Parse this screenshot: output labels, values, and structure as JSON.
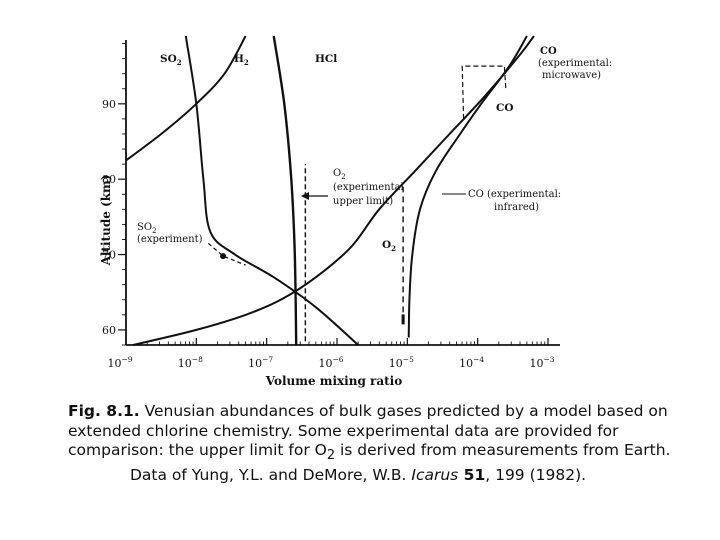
{
  "chart_data": {
    "type": "line",
    "xlabel": "Volume mixing ratio",
    "ylabel": "Altitude (km)",
    "xscale": "log",
    "xlim": [
      1e-09,
      0.001
    ],
    "ylim": [
      58,
      99
    ],
    "xticks": [
      {
        "exp": -9,
        "label": "10",
        "sup": "−9"
      },
      {
        "exp": -8,
        "label": "10",
        "sup": "−8"
      },
      {
        "exp": -7,
        "label": "10",
        "sup": "−7"
      },
      {
        "exp": -6,
        "label": "10",
        "sup": "−6"
      },
      {
        "exp": -5,
        "label": "10",
        "sup": "−5"
      },
      {
        "exp": -4,
        "label": "10",
        "sup": "−4"
      },
      {
        "exp": -3,
        "label": "10",
        "sup": "−3"
      }
    ],
    "yticks": [
      {
        "value": 60,
        "label": "60"
      },
      {
        "value": 70,
        "label": "70"
      },
      {
        "value": 80,
        "label": "80"
      },
      {
        "value": 90,
        "label": "90"
      }
    ],
    "grid": false,
    "series": [
      {
        "name": "SO2",
        "style": "solid",
        "points": [
          [
            -8.15,
            99
          ],
          [
            -8.0,
            90
          ],
          [
            -7.9,
            80
          ],
          [
            -7.8,
            73
          ],
          [
            -7.45,
            70
          ],
          [
            -6.9,
            67
          ],
          [
            -6.3,
            63
          ],
          [
            -5.7,
            58
          ]
        ]
      },
      {
        "name": "H2",
        "style": "solid",
        "points": [
          [
            -9.0,
            82.5
          ],
          [
            -8.5,
            86
          ],
          [
            -8.0,
            90
          ],
          [
            -7.6,
            94
          ],
          [
            -7.3,
            99
          ]
        ]
      },
      {
        "name": "HCl",
        "style": "solid",
        "points": [
          [
            -6.9,
            99
          ],
          [
            -6.75,
            90
          ],
          [
            -6.65,
            80
          ],
          [
            -6.6,
            70
          ],
          [
            -6.58,
            58
          ]
        ]
      },
      {
        "name": "O2",
        "style": "solid",
        "points": [
          [
            -8.9,
            58
          ],
          [
            -8.0,
            60
          ],
          [
            -7.3,
            62
          ],
          [
            -6.8,
            64
          ],
          [
            -6.3,
            67
          ],
          [
            -5.8,
            71
          ],
          [
            -5.4,
            76
          ],
          [
            -4.9,
            81
          ],
          [
            -4.4,
            86
          ],
          [
            -3.9,
            91
          ],
          [
            -3.4,
            96.5
          ],
          [
            -3.2,
            99
          ]
        ]
      },
      {
        "name": "CO",
        "style": "solid",
        "points": [
          [
            -4.98,
            59
          ],
          [
            -4.97,
            64
          ],
          [
            -4.93,
            70
          ],
          [
            -4.82,
            76
          ],
          [
            -4.6,
            81
          ],
          [
            -4.25,
            86
          ],
          [
            -3.95,
            90
          ],
          [
            -3.55,
            95
          ],
          [
            -3.3,
            99
          ]
        ]
      }
    ],
    "experimental": {
      "so2_experiment": {
        "points": [
          [
            -7.83,
            71.5
          ],
          [
            -7.62,
            69.8
          ],
          [
            -7.3,
            68.6
          ]
        ],
        "marker": [
          -7.62,
          69.8
        ]
      },
      "o2_upper_limit": {
        "x": -6.45,
        "y_range": [
          58.5,
          82
        ]
      },
      "co_infrared": {
        "x": -5.06,
        "y_range": [
          61,
          79
        ],
        "marker_y": 61
      },
      "co_microwave": {
        "points": [
          [
            -4.2,
            88
          ],
          [
            -4.22,
            95
          ],
          [
            -3.62,
            95
          ],
          [
            -3.6,
            92
          ]
        ]
      }
    }
  },
  "labels": {
    "so2": {
      "base": "SO",
      "sub": "2"
    },
    "h2": {
      "base": "H",
      "sub": "2"
    },
    "hcl": "HCl",
    "o2_curve": {
      "base": "O",
      "sub": "2"
    },
    "co_curve": "CO",
    "so2_exp_line1": {
      "base": "SO",
      "sub": "2"
    },
    "so2_exp_line2": "(experiment)",
    "o2_exp_line1": {
      "base": "O",
      "sub": "2"
    },
    "o2_exp_line2": "(experimental",
    "o2_exp_line3": "upper limit)",
    "co_ir_line1": "CO (experimental:",
    "co_ir_line2": "infrared)",
    "co_mw_line1": "CO",
    "co_mw_line2": "(experimental:",
    "co_mw_line3": "microwave)"
  },
  "caption": {
    "fig_label": "Fig. 8.1.",
    "line1": " Venusian abundances of bulk gases predicted by a model based on",
    "line2": "extended chlorine chemistry. Some experimental data are provided for",
    "line3a": "comparison: the upper limit for O",
    "line3_sub": "2",
    "line3b": " is derived from measurements from Earth.",
    "line4a": "Data of Yung, Y.L. and DeMore, W.B. ",
    "journal": "Icarus",
    "volume": " 51",
    "line4b": ", 199 (1982)."
  }
}
